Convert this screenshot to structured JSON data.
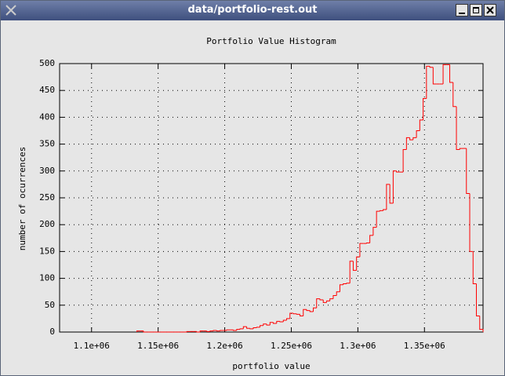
{
  "window": {
    "title": "data/portfolio-rest.out"
  },
  "chart_data": {
    "type": "histogram",
    "title": "Portfolio Value Histogram",
    "x_label": "portfolio value",
    "y_label": "number of ocurrences",
    "color": "#ff0000",
    "grid": true,
    "bins": [
      1134000,
      1136500,
      1139000,
      1141500,
      1144000,
      1146500,
      1149000,
      1151500,
      1154000,
      1156500,
      1159000,
      1161500,
      1164000,
      1166500,
      1169000,
      1171500,
      1174000,
      1176500,
      1179000,
      1181500,
      1184000,
      1186500,
      1189000,
      1191500,
      1194000,
      1196500,
      1199000,
      1201500,
      1204000,
      1206500,
      1209000,
      1211500,
      1214000,
      1216500,
      1219000,
      1221500,
      1224000,
      1226500,
      1229000,
      1231500,
      1234000,
      1236500,
      1239000,
      1241500,
      1244000,
      1246500,
      1249000,
      1251500,
      1254000,
      1256500,
      1259000,
      1261500,
      1264000,
      1266500,
      1269000,
      1271500,
      1274000,
      1276500,
      1279000,
      1281500,
      1284000,
      1286500,
      1289000,
      1291500,
      1294000,
      1296500,
      1299000,
      1301500,
      1304000,
      1306500,
      1309000,
      1311500,
      1314000,
      1316500,
      1319000,
      1321500,
      1324000,
      1326500,
      1329000,
      1331500,
      1334000,
      1336500,
      1339000,
      1341500,
      1344000,
      1346500,
      1349000,
      1351500,
      1354000,
      1356500,
      1359000,
      1361500,
      1364000,
      1366500,
      1369000,
      1371500,
      1374000,
      1376500,
      1379000,
      1381500,
      1384000,
      1386500,
      1389000,
      1391500,
      1394000
    ],
    "counts": [
      2,
      2,
      0,
      0,
      0,
      0,
      0,
      0,
      0,
      0,
      0,
      0,
      0,
      0,
      0,
      1,
      1,
      1,
      0,
      2,
      2,
      1,
      2,
      3,
      2,
      3,
      3,
      4,
      4,
      3,
      5,
      6,
      10,
      7,
      6,
      8,
      9,
      12,
      15,
      13,
      18,
      16,
      20,
      19,
      22,
      25,
      35,
      34,
      33,
      30,
      42,
      40,
      38,
      45,
      62,
      60,
      55,
      58,
      62,
      68,
      75,
      88,
      90,
      91,
      132,
      115,
      140,
      165,
      165,
      166,
      180,
      195,
      225,
      226,
      228,
      275,
      240,
      300,
      298,
      298,
      340,
      362,
      358,
      362,
      375,
      395,
      435,
      495,
      493,
      462,
      462,
      462,
      498,
      498,
      465,
      420,
      340,
      342,
      342,
      258,
      150,
      90,
      30,
      5
    ],
    "xlim": [
      1076000,
      1394000
    ],
    "ylim": [
      0,
      500
    ],
    "xticks": [
      {
        "value": 1100000,
        "label": "1.1e+06"
      },
      {
        "value": 1150000,
        "label": "1.15e+06"
      },
      {
        "value": 1200000,
        "label": "1.2e+06"
      },
      {
        "value": 1250000,
        "label": "1.25e+06"
      },
      {
        "value": 1300000,
        "label": "1.3e+06"
      },
      {
        "value": 1350000,
        "label": "1.35e+06"
      }
    ],
    "yticks": [
      0,
      50,
      100,
      150,
      200,
      250,
      300,
      350,
      400,
      450,
      500
    ]
  }
}
